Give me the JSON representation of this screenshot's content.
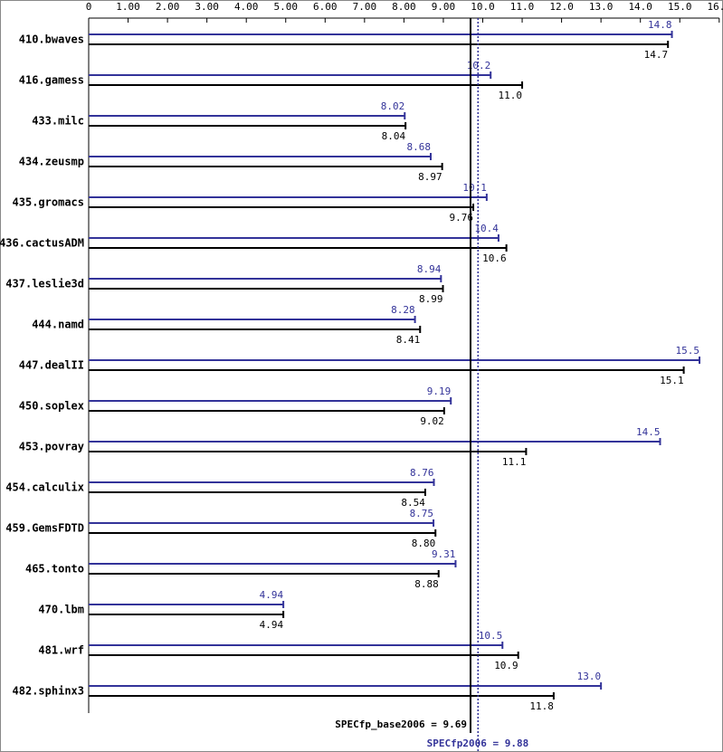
{
  "chart_data": {
    "type": "bar",
    "orientation": "horizontal",
    "categories": [
      "410.bwaves",
      "416.gamess",
      "433.milc",
      "434.zeusmp",
      "435.gromacs",
      "436.cactusADM",
      "437.leslie3d",
      "444.namd",
      "447.dealII",
      "450.soplex",
      "453.povray",
      "454.calculix",
      "459.GemsFDTD",
      "465.tonto",
      "470.lbm",
      "481.wrf",
      "482.sphinx3"
    ],
    "series": [
      {
        "color": "#333399",
        "values": [
          14.8,
          10.2,
          8.02,
          8.68,
          10.1,
          10.4,
          8.94,
          8.28,
          15.5,
          9.19,
          14.5,
          8.76,
          8.75,
          9.31,
          4.94,
          10.5,
          13.0
        ],
        "value_labels": [
          "14.8",
          "10.2",
          "8.02",
          "8.68",
          "10.1",
          "10.4",
          "8.94",
          "8.28",
          "15.5",
          "9.19",
          "14.5",
          "8.76",
          "8.75",
          "9.31",
          "4.94",
          "10.5",
          "13.0"
        ]
      },
      {
        "color": "#000000",
        "values": [
          14.7,
          11.0,
          8.04,
          8.97,
          9.76,
          10.6,
          8.99,
          8.41,
          15.1,
          9.02,
          11.1,
          8.54,
          8.8,
          8.88,
          4.94,
          10.9,
          11.8
        ],
        "value_labels": [
          "14.7",
          "11.0",
          "8.04",
          "8.97",
          "9.76",
          "10.6",
          "8.99",
          "8.41",
          "15.1",
          "9.02",
          "11.1",
          "8.54",
          "8.80",
          "8.88",
          "4.94",
          "10.9",
          "11.8"
        ]
      }
    ],
    "xlim": [
      0,
      16
    ],
    "xticks": [
      0,
      {
        "value": 1,
        "label": "1.00"
      },
      {
        "value": 2,
        "label": "2.00"
      },
      {
        "value": 3,
        "label": "3.00"
      },
      {
        "value": 4,
        "label": "4.00"
      },
      {
        "value": 5,
        "label": "5.00"
      },
      {
        "value": 6,
        "label": "6.00"
      },
      {
        "value": 7,
        "label": "7.00"
      },
      {
        "value": 8,
        "label": "8.00"
      },
      {
        "value": 9,
        "label": "9.00"
      },
      {
        "value": 10,
        "label": "10.0"
      },
      {
        "value": 11,
        "label": "11.0"
      },
      {
        "value": 12,
        "label": "12.0"
      },
      {
        "value": 13,
        "label": "13.0"
      },
      {
        "value": 14,
        "label": "14.0"
      },
      {
        "value": 15,
        "label": "15.0"
      },
      {
        "value": 16,
        "label": "16.0"
      }
    ],
    "annotations": [
      {
        "label": "SPECfp_base2006 = 9.69",
        "value": 9.69,
        "color": "#000000",
        "dotted": false
      },
      {
        "label": "SPECfp2006 = 9.88",
        "value": 9.88,
        "color": "#333399",
        "dotted": true
      }
    ]
  }
}
